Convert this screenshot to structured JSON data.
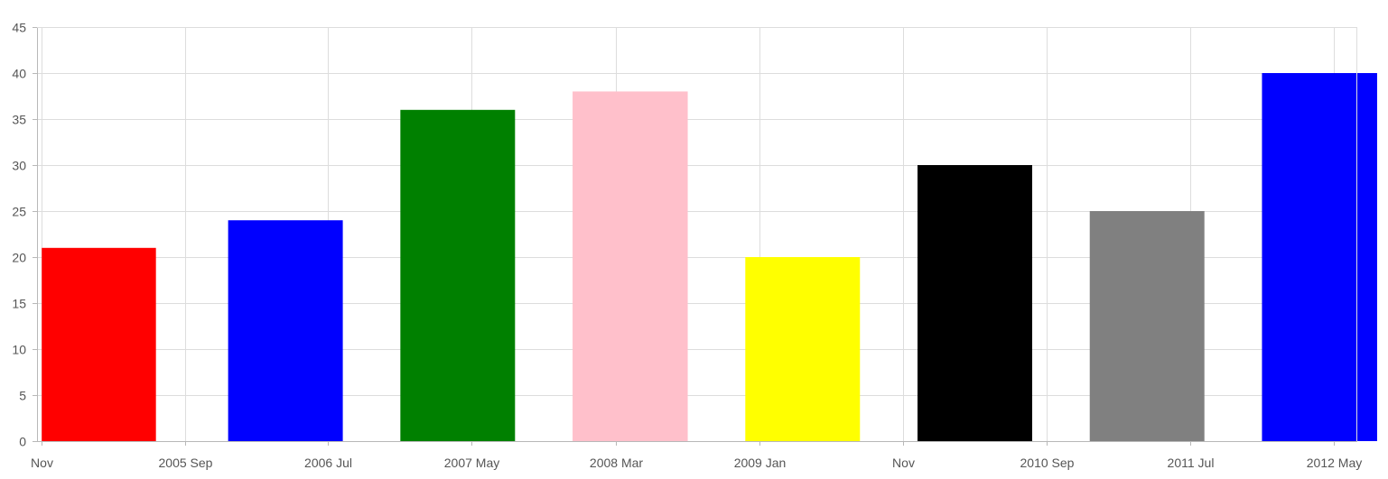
{
  "chart_data": {
    "type": "bar",
    "x_axis_type": "date",
    "title": "",
    "xlabel": "",
    "ylabel": "",
    "ylim": [
      0,
      45
    ],
    "y_ticks": [
      "0",
      "5",
      "10",
      "15",
      "20",
      "25",
      "30",
      "35",
      "40",
      "45"
    ],
    "grid": true,
    "legend": "none",
    "x_range": [
      "2004-10-22",
      "2012-06-20"
    ],
    "x_ticks": [
      {
        "date": "2004-11-01",
        "label": "Nov"
      },
      {
        "date": "2005-09-01",
        "label": "2005 Sep"
      },
      {
        "date": "2006-07-01",
        "label": "2006 Jul"
      },
      {
        "date": "2007-05-01",
        "label": "2007 May"
      },
      {
        "date": "2008-03-01",
        "label": "2008 Mar"
      },
      {
        "date": "2009-01-01",
        "label": "2009 Jan"
      },
      {
        "date": "2009-11-01",
        "label": "Nov"
      },
      {
        "date": "2010-09-01",
        "label": "2010 Sep"
      },
      {
        "date": "2011-07-01",
        "label": "2011 Jul"
      },
      {
        "date": "2012-05-01",
        "label": "2012 May"
      }
    ],
    "bars": [
      {
        "start": "2004-11-01",
        "end": "2005-07-01",
        "value": 21,
        "color": "#ff0000"
      },
      {
        "start": "2005-12-01",
        "end": "2006-08-01",
        "value": 24,
        "color": "#0000ff"
      },
      {
        "start": "2006-12-01",
        "end": "2007-08-01",
        "value": 36,
        "color": "#008000"
      },
      {
        "start": "2007-12-01",
        "end": "2008-08-01",
        "value": 38,
        "color": "#ffc0cb"
      },
      {
        "start": "2008-12-01",
        "end": "2009-08-01",
        "value": 20,
        "color": "#ffff00"
      },
      {
        "start": "2009-12-01",
        "end": "2010-08-01",
        "value": 30,
        "color": "#000000"
      },
      {
        "start": "2010-12-01",
        "end": "2011-08-01",
        "value": 25,
        "color": "#808080"
      },
      {
        "start": "2011-12-01",
        "end": "2012-08-01",
        "value": 40,
        "color": "#0000ff"
      }
    ]
  }
}
